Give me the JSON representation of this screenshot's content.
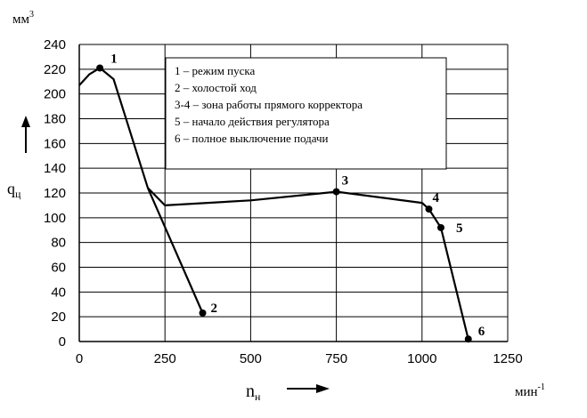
{
  "chart_data": {
    "type": "line",
    "xlabel": "n",
    "xlabel_sub": "н",
    "xunit": "мин",
    "xunit_sup": "-1",
    "ylabel": "q",
    "ylabel_sub": "ц",
    "yunit": "мм",
    "yunit_sup": "3",
    "xlim": [
      0,
      1250
    ],
    "ylim": [
      0,
      240
    ],
    "xticks": [
      0,
      250,
      500,
      750,
      1000,
      1250
    ],
    "yticks": [
      0,
      20,
      40,
      60,
      80,
      100,
      120,
      140,
      160,
      180,
      200,
      220,
      240
    ],
    "grid": true,
    "legend_position": "top-center",
    "legend": [
      "1 – режим пуска",
      "2 – холостой ход",
      "3-4 – зона работы прямого корректора",
      "5 – начало действия регулятора",
      "6 – полное выключение подачи"
    ],
    "series": [
      {
        "points": [
          [
            0,
            207
          ],
          [
            30,
            216
          ],
          [
            60,
            221
          ],
          [
            100,
            212
          ],
          [
            200,
            124
          ],
          [
            360,
            23
          ]
        ]
      },
      {
        "points": [
          [
            200,
            124
          ],
          [
            250,
            110
          ],
          [
            500,
            114
          ],
          [
            750,
            121
          ],
          [
            1000,
            112
          ],
          [
            1020,
            107
          ],
          [
            1055,
            92
          ],
          [
            1135,
            2
          ]
        ]
      }
    ],
    "markers": [
      {
        "label": "1",
        "x": 60,
        "y": 221
      },
      {
        "label": "2",
        "x": 360,
        "y": 23
      },
      {
        "label": "3",
        "x": 750,
        "y": 121
      },
      {
        "label": "4",
        "x": 1020,
        "y": 107
      },
      {
        "label": "5",
        "x": 1055,
        "y": 92
      },
      {
        "label": "6",
        "x": 1135,
        "y": 2
      }
    ]
  }
}
